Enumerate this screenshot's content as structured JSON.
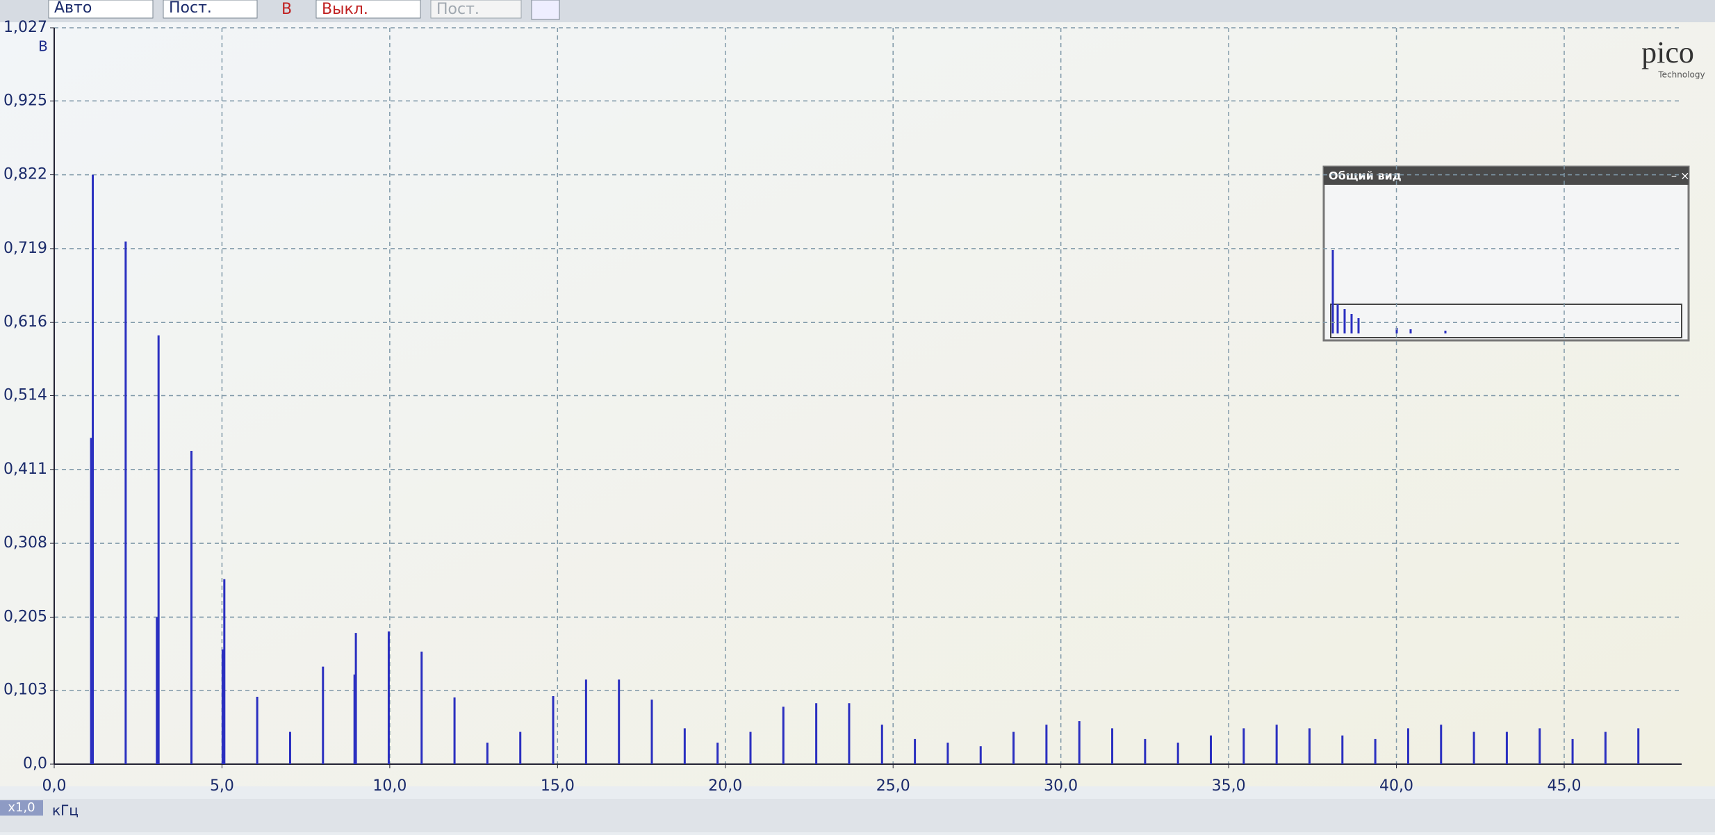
{
  "toolbar": {
    "trigger_mode": "Авто",
    "coupling": "Пост.",
    "channel": "В",
    "channel_state": "Выкл.",
    "coupling2": "Пост."
  },
  "logo": {
    "name": "pico",
    "subtitle": "Technology"
  },
  "overview": {
    "title": "Общий вид"
  },
  "zoom_label": "x1,0",
  "chart_data": {
    "type": "bar",
    "y_label": "В",
    "x_label": "кГц",
    "color": "#2a2fc0",
    "grid": true,
    "xlim": [
      0,
      48.5
    ],
    "ylim": [
      0,
      1.027
    ],
    "xticks": [
      {
        "value": 0,
        "label": "0,0"
      },
      {
        "value": 5,
        "label": "5,0"
      },
      {
        "value": 10,
        "label": "10,0"
      },
      {
        "value": 15,
        "label": "15,0"
      },
      {
        "value": 20,
        "label": "20,0"
      },
      {
        "value": 25,
        "label": "25,0"
      },
      {
        "value": 30,
        "label": "30,0"
      },
      {
        "value": 35,
        "label": "35,0"
      },
      {
        "value": 40,
        "label": "40,0"
      },
      {
        "value": 45,
        "label": "45,0"
      }
    ],
    "yticks": [
      {
        "value": 0,
        "label": "0,0"
      },
      {
        "value": 0.103,
        "label": "0,103"
      },
      {
        "value": 0.205,
        "label": "0,205"
      },
      {
        "value": 0.308,
        "label": "0,308"
      },
      {
        "value": 0.411,
        "label": "0,411"
      },
      {
        "value": 0.514,
        "label": "0,514"
      },
      {
        "value": 0.616,
        "label": "0,616"
      },
      {
        "value": 0.719,
        "label": "0,719"
      },
      {
        "value": 0.822,
        "label": "0,822"
      },
      {
        "value": 0.925,
        "label": "0,925"
      },
      {
        "value": 1.027,
        "label": "1,027"
      }
    ],
    "x": [
      1.1,
      1.15,
      2.13,
      3.06,
      3.11,
      4.09,
      5.02,
      5.07,
      6.05,
      7.03,
      8.01,
      8.95,
      8.99,
      9.97,
      10.95,
      11.93,
      12.91,
      13.89,
      14.87,
      15.85,
      16.83,
      17.81,
      18.79,
      19.77,
      20.75,
      21.73,
      22.71,
      23.69,
      24.67,
      25.65,
      26.63,
      27.61,
      28.59,
      29.57,
      30.55,
      31.53,
      32.51,
      33.49,
      34.47,
      35.45,
      36.43,
      37.41,
      38.39,
      39.37,
      40.35,
      41.33,
      42.31,
      43.29,
      44.27,
      45.25,
      46.23,
      47.21
    ],
    "values": [
      0.455,
      0.822,
      0.729,
      0.205,
      0.598,
      0.437,
      0.16,
      0.258,
      0.094,
      0.045,
      0.136,
      0.125,
      0.183,
      0.185,
      0.157,
      0.093,
      0.03,
      0.045,
      0.095,
      0.118,
      0.118,
      0.09,
      0.05,
      0.03,
      0.045,
      0.08,
      0.085,
      0.085,
      0.055,
      0.035,
      0.03,
      0.025,
      0.045,
      0.055,
      0.06,
      0.05,
      0.035,
      0.03,
      0.04,
      0.05,
      0.055,
      0.05,
      0.04,
      0.035,
      0.05,
      0.055,
      0.045,
      0.045,
      0.05,
      0.035,
      0.045,
      0.05
    ]
  }
}
